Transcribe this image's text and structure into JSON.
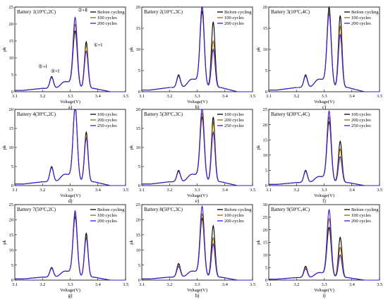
{
  "chart_data": [
    {
      "type": "line",
      "title": "Battery 1(10°C,2C)",
      "xlabel": "Voltage(V)",
      "ylabel": "pk",
      "panel_label": "a)",
      "xlim": [
        3.1,
        3.5
      ],
      "ylim": [
        0,
        25
      ],
      "yticks": [
        0,
        5,
        10,
        15,
        20,
        25
      ],
      "xticks": [
        "3.1",
        "3.2",
        "3.3",
        "3.4",
        "3.5"
      ],
      "legend": "top-right",
      "series": [
        {
          "name": "Before cycling",
          "color": "#000000",
          "peaks": [
            4.5,
            18.0,
            14.2
          ]
        },
        {
          "name": "100 cycles",
          "color": "#9a6a00",
          "peaks": [
            4.3,
            20.0,
            13.2
          ]
        },
        {
          "name": "200 cycles",
          "color": "#3b18e0",
          "peaks": [
            4.2,
            22.0,
            11.5
          ]
        }
      ],
      "annotations": [
        {
          "text": "②+Ⅱ",
          "x": 3.345,
          "y": 23.6
        },
        {
          "text": "①+Ⅰ",
          "x": 3.4,
          "y": 13.3
        },
        {
          "text": "⑤+Ⅰ",
          "x": 3.2,
          "y": 7.0
        },
        {
          "text": "③+Ⅰ",
          "x": 3.245,
          "y": 5.6
        }
      ]
    },
    {
      "type": "line",
      "title": "Battery 2(10°C,3C)",
      "xlabel": "Voltage(V)",
      "ylabel": "pk",
      "panel_label": "b)",
      "xlim": [
        3.1,
        3.5
      ],
      "ylim": [
        0,
        20
      ],
      "yticks": [
        0,
        5,
        10,
        15,
        20
      ],
      "xticks": [
        "3.1",
        "3.2",
        "3.3",
        "3.4",
        "3.5"
      ],
      "legend": "top-right",
      "series": [
        {
          "name": "Before cycling",
          "color": "#000000",
          "peaks": [
            4.0,
            19.0,
            16.0
          ]
        },
        {
          "name": "100 cycles",
          "color": "#9a6a00",
          "peaks": [
            3.8,
            20.0,
            11.5
          ]
        },
        {
          "name": "200 cycles",
          "color": "#3b18e0",
          "peaks": [
            3.7,
            20.5,
            9.5
          ]
        }
      ]
    },
    {
      "type": "line",
      "title": "Battery 3(10°C,4C)",
      "xlabel": "Voltage(V)",
      "ylabel": "pk",
      "panel_label": "c)",
      "xlim": [
        3.1,
        3.5
      ],
      "ylim": [
        0,
        20
      ],
      "yticks": [
        0,
        5,
        10,
        15,
        20
      ],
      "xticks": [
        "3.1",
        "3.2",
        "3.3",
        "3.4",
        "3.5"
      ],
      "legend": "top-right",
      "series": [
        {
          "name": "Before cycling",
          "color": "#000000",
          "peaks": [
            4.0,
            20.0,
            17.5
          ]
        },
        {
          "name": "100 cycles",
          "color": "#9a6a00",
          "peaks": [
            3.8,
            19.0,
            15.0
          ]
        },
        {
          "name": "200 cycles",
          "color": "#3b18e0",
          "peaks": [
            3.7,
            18.5,
            13.0
          ]
        }
      ]
    },
    {
      "type": "line",
      "title": "Battery 4(30°C,2C)",
      "xlabel": "Voltage(V)",
      "ylabel": "pk",
      "panel_label": "d)",
      "xlim": [
        3.1,
        3.5
      ],
      "ylim": [
        0,
        20
      ],
      "yticks": [
        0,
        5,
        10,
        15,
        20
      ],
      "xticks": [
        "3.1",
        "3.2",
        "3.3",
        "3.4",
        "3.5"
      ],
      "legend": "top-right",
      "series": [
        {
          "name": "100 cycles",
          "color": "#000000",
          "peaks": [
            5.0,
            21.0,
            13.5
          ]
        },
        {
          "name": "200 cycles",
          "color": "#9a6a00",
          "peaks": [
            4.8,
            20.7,
            12.8
          ]
        },
        {
          "name": "250 cycles",
          "color": "#3b18e0",
          "peaks": [
            4.7,
            20.5,
            12.0
          ]
        }
      ]
    },
    {
      "type": "line",
      "title": "Battery 5(30°C,3C)",
      "xlabel": "Voltage(V)",
      "ylabel": "pk",
      "panel_label": "e)",
      "xlim": [
        3.1,
        3.5
      ],
      "ylim": [
        0,
        20
      ],
      "yticks": [
        0,
        5,
        10,
        15,
        20
      ],
      "xticks": [
        "3.1",
        "3.2",
        "3.3",
        "3.4",
        "3.5"
      ],
      "legend": "top-right",
      "series": [
        {
          "name": "100 cycles",
          "color": "#000000",
          "peaks": [
            4.0,
            18.0,
            17.5
          ]
        },
        {
          "name": "200 cycles",
          "color": "#9a6a00",
          "peaks": [
            3.8,
            19.0,
            16.0
          ]
        },
        {
          "name": "250 cycles",
          "color": "#3b18e0",
          "peaks": [
            3.7,
            20.5,
            13.5
          ]
        }
      ]
    },
    {
      "type": "line",
      "title": "Battery 6(30°C,4C)",
      "xlabel": "Voltage(V)",
      "ylabel": "pk",
      "panel_label": "f)",
      "xlim": [
        3.1,
        3.5
      ],
      "ylim": [
        0,
        25
      ],
      "yticks": [
        0,
        5,
        10,
        15,
        20,
        25
      ],
      "xticks": [
        "3.1",
        "3.2",
        "3.3",
        "3.4",
        "3.5"
      ],
      "legend": "top-right",
      "series": [
        {
          "name": "100 cycles",
          "color": "#000000",
          "peaks": [
            5.0,
            21.0,
            14.0
          ]
        },
        {
          "name": "200 cycles",
          "color": "#9a6a00",
          "peaks": [
            4.8,
            22.5,
            11.5
          ]
        },
        {
          "name": "250 cycles",
          "color": "#3b18e0",
          "peaks": [
            4.7,
            24.5,
            9.0
          ]
        }
      ]
    },
    {
      "type": "line",
      "title": "Battery 7(50°C,2C)",
      "xlabel": "Voltage(V)",
      "ylabel": "pk",
      "panel_label": "g)",
      "xlim": [
        3.1,
        3.5
      ],
      "ylim": [
        0,
        25
      ],
      "yticks": [
        0,
        5,
        10,
        15,
        20,
        25
      ],
      "xticks": [
        "3.1",
        "3.2",
        "3.3",
        "3.4",
        "3.5"
      ],
      "legend": "top-right",
      "series": [
        {
          "name": "Before cycling",
          "color": "#000000",
          "peaks": [
            4.2,
            21.0,
            15.0
          ]
        },
        {
          "name": "100 cycles",
          "color": "#9a6a00",
          "peaks": [
            4.0,
            22.0,
            14.0
          ]
        },
        {
          "name": "200 cycles",
          "color": "#3b18e0",
          "peaks": [
            3.9,
            23.0,
            13.5
          ]
        }
      ]
    },
    {
      "type": "line",
      "title": "Battery 8(50°C,3C)",
      "xlabel": "Voltage(V)",
      "ylabel": "pk",
      "panel_label": "h)",
      "xlim": [
        3.1,
        3.5
      ],
      "ylim": [
        0,
        25
      ],
      "yticks": [
        0,
        5,
        10,
        15,
        20,
        25
      ],
      "xticks": [
        "3.1",
        "3.2",
        "3.3",
        "3.4",
        "3.5"
      ],
      "legend": "top-right",
      "series": [
        {
          "name": "Before cycling",
          "color": "#000000",
          "peaks": [
            5.5,
            20.5,
            17.5
          ]
        },
        {
          "name": "100 cycles",
          "color": "#9a6a00",
          "peaks": [
            5.0,
            22.0,
            13.5
          ]
        },
        {
          "name": "200 cycles",
          "color": "#3b18e0",
          "peaks": [
            4.5,
            24.5,
            11.5
          ]
        }
      ]
    },
    {
      "type": "line",
      "title": "Battery 9(50°C,4C)",
      "xlabel": "Voltage(V)",
      "ylabel": "pk",
      "panel_label": "i)",
      "xlim": [
        3.1,
        3.5
      ],
      "ylim": [
        0,
        30
      ],
      "yticks": [
        0,
        5,
        10,
        15,
        20,
        25,
        30
      ],
      "xticks": [
        "3.1",
        "3.2",
        "3.3",
        "3.4",
        "3.5"
      ],
      "legend": "top-right",
      "series": [
        {
          "name": "Before cycling",
          "color": "#000000",
          "peaks": [
            5.5,
            21.0,
            16.5
          ]
        },
        {
          "name": "100 cycles",
          "color": "#9a6a00",
          "peaks": [
            5.0,
            24.5,
            12.5
          ]
        },
        {
          "name": "200 cycles",
          "color": "#3b18e0",
          "peaks": [
            4.5,
            28.0,
            9.5
          ]
        }
      ]
    }
  ]
}
